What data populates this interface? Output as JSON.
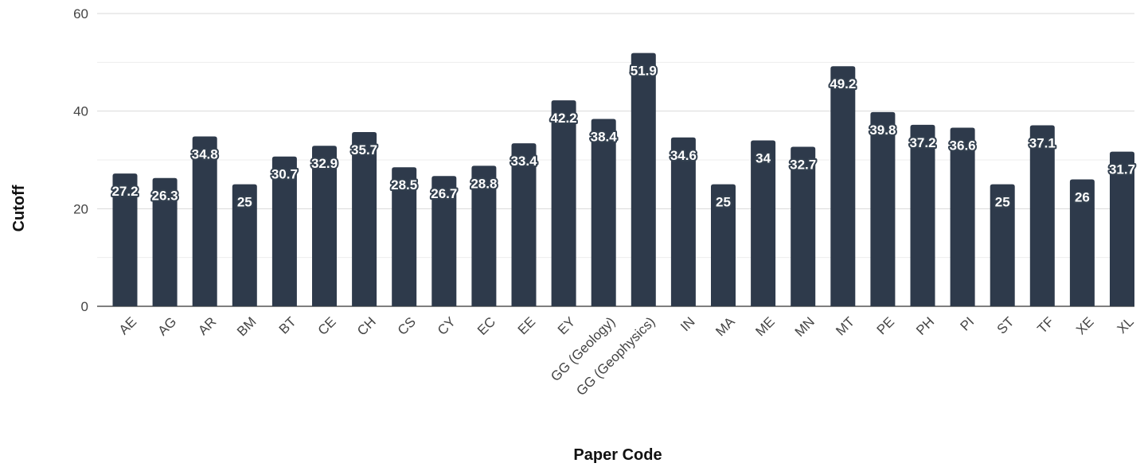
{
  "chart_data": {
    "type": "bar",
    "xlabel": "Paper Code",
    "ylabel": "Cutoff",
    "ylim": [
      0,
      60
    ],
    "yticks": [
      0,
      20,
      40,
      60
    ],
    "minor_grid_step": 10,
    "grid": true,
    "bar_color": "#2e3a4b",
    "categories": [
      "AE",
      "AG",
      "AR",
      "BM",
      "BT",
      "CE",
      "CH",
      "CS",
      "CY",
      "EC",
      "EE",
      "EY",
      "GG (Geology)",
      "GG (Geophysics)",
      "IN",
      "MA",
      "ME",
      "MN",
      "MT",
      "PE",
      "PH",
      "PI",
      "ST",
      "TF",
      "XE",
      "XL"
    ],
    "values": [
      27.2,
      26.3,
      34.8,
      25,
      30.7,
      32.9,
      35.7,
      28.5,
      26.7,
      28.8,
      33.4,
      42.2,
      38.4,
      51.9,
      34.6,
      25,
      34,
      32.7,
      49.2,
      39.8,
      37.2,
      36.6,
      25,
      37.1,
      26,
      31.7
    ],
    "data_labels": [
      "27.2",
      "26.3",
      "34.8",
      "25",
      "30.7",
      "32.9",
      "35.7",
      "28.5",
      "26.7",
      "28.8",
      "33.4",
      "42.2",
      "38.4",
      "51.9",
      "34.6",
      "25",
      "34",
      "32.7",
      "49.2",
      "39.8",
      "37.2",
      "36.6",
      "25",
      "37.1",
      "26",
      "31.7"
    ]
  }
}
